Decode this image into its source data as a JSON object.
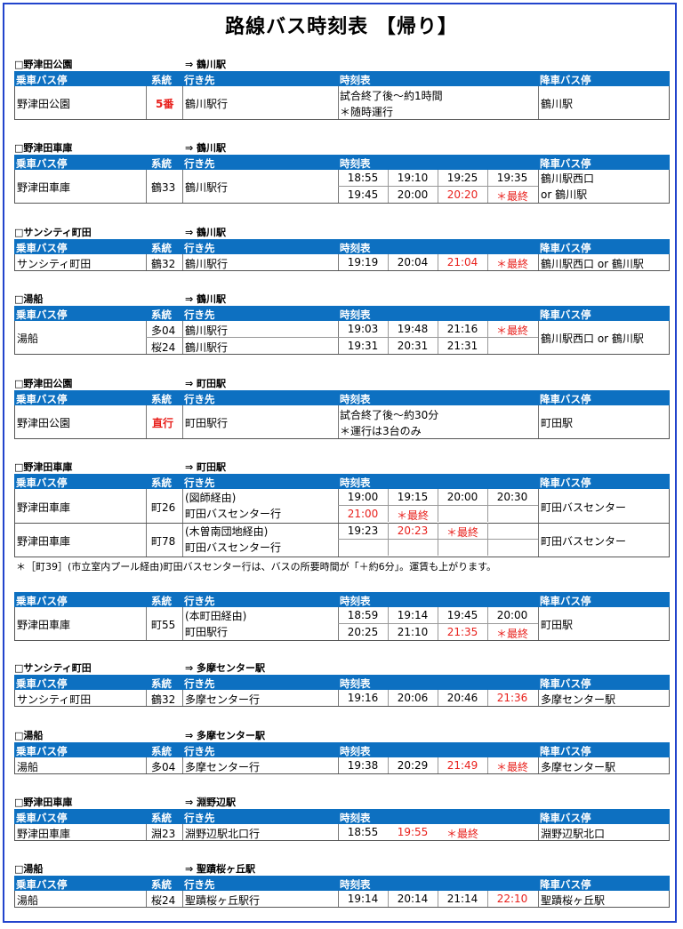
{
  "title": "路線バス時刻表 【帰り】",
  "cols": {
    "stop": "乗車バス停",
    "route": "系統",
    "dest": "行き先",
    "times": "時刻表",
    "alight": "降車バス停"
  },
  "s1": {
    "from": "□野津田公園",
    "to": "⇒ 鶴川駅",
    "stop": "野津田公園",
    "route": "5番",
    "dest": "鶴川駅行",
    "line1": "試合終了後～約1時間",
    "line2": "＊随時運行",
    "alight": "鶴川駅"
  },
  "s2": {
    "from": "□野津田車庫",
    "to": "⇒ 鶴川駅",
    "stop": "野津田車庫",
    "route": "鶴33",
    "dest": "鶴川駅行",
    "t": [
      "18:55",
      "19:10",
      "19:25",
      "19:35",
      "19:45",
      "20:00",
      "20:20",
      "＊最終"
    ],
    "alight1": "鶴川駅西口",
    "alight2": "or 鶴川駅"
  },
  "s3": {
    "from": "□サンシティ町田",
    "to": "⇒ 鶴川駅",
    "stop": "サンシティ町田",
    "route": "鶴32",
    "dest": "鶴川駅行",
    "t": [
      "19:19",
      "20:04",
      "21:04",
      "＊最終"
    ],
    "alight": "鶴川駅西口 or 鶴川駅"
  },
  "s4": {
    "from": "□湯船",
    "to": "⇒ 鶴川駅",
    "stop": "湯船",
    "route1": "多04",
    "dest1": "鶴川駅行",
    "route2": "桜24",
    "dest2": "鶴川駅行",
    "t": [
      "19:03",
      "19:48",
      "21:16",
      "＊最終",
      "19:31",
      "20:31",
      "21:31"
    ],
    "alight": "鶴川駅西口 or 鶴川駅"
  },
  "s5": {
    "from": "□野津田公園",
    "to": "⇒ 町田駅",
    "stop": "野津田公園",
    "route": "直行",
    "dest": "町田駅行",
    "line1": "試合終了後～約30分",
    "line2": "＊運行は3台のみ",
    "alight": "町田駅"
  },
  "s6": {
    "from": "□野津田車庫",
    "to": "⇒ 町田駅",
    "r1": {
      "stop": "野津田車庫",
      "route": "町26",
      "via": "(図師経由)",
      "dest": "町田バスセンター行",
      "t": [
        "19:00",
        "19:15",
        "20:00",
        "20:30",
        "21:00",
        "＊最終"
      ],
      "alight": "町田バスセンター"
    },
    "r2": {
      "stop": "野津田車庫",
      "route": "町78",
      "via": "(木曽南団地経由)",
      "dest": "町田バスセンター行",
      "t": [
        "19:23",
        "20:23",
        "＊最終"
      ],
      "alight": "町田バスセンター"
    },
    "note": "＊［町39］(市立室内プール経由)町田バスセンター行は、バスの所要時間が「＋約6分」。運賃も上がります。"
  },
  "s7": {
    "stop": "野津田車庫",
    "route": "町55",
    "via": "(本町田経由)",
    "dest": "町田駅行",
    "t": [
      "18:59",
      "19:14",
      "19:45",
      "20:00",
      "20:25",
      "21:10",
      "21:35",
      "＊最終"
    ],
    "alight": "町田駅"
  },
  "s8": {
    "from": "□サンシティ町田",
    "to": "⇒ 多摩センター駅",
    "stop": "サンシティ町田",
    "route": "鶴32",
    "dest": "多摩センター行",
    "t": [
      "19:16",
      "20:06",
      "20:46",
      "21:36"
    ],
    "alight": "多摩センター駅"
  },
  "s9": {
    "from": "□湯船",
    "to": "⇒ 多摩センター駅",
    "stop": "湯船",
    "route": "多04",
    "dest": "多摩センター行",
    "t": [
      "19:38",
      "20:29",
      "21:49",
      "＊最終"
    ],
    "alight": "多摩センター駅"
  },
  "s10": {
    "from": "□野津田車庫",
    "to": "⇒ 淵野辺駅",
    "stop": "野津田車庫",
    "route": "淵23",
    "dest": "淵野辺駅北口行",
    "t": [
      "18:55",
      "19:55",
      "＊最終"
    ],
    "alight": "淵野辺駅北口"
  },
  "s11": {
    "from": "□湯船",
    "to": "⇒ 聖蹟桜ヶ丘駅",
    "stop": "湯船",
    "route": "桜24",
    "dest": "聖蹟桜ヶ丘駅行",
    "t": [
      "19:14",
      "20:14",
      "21:14",
      "22:10"
    ],
    "alight": "聖蹟桜ヶ丘駅"
  }
}
